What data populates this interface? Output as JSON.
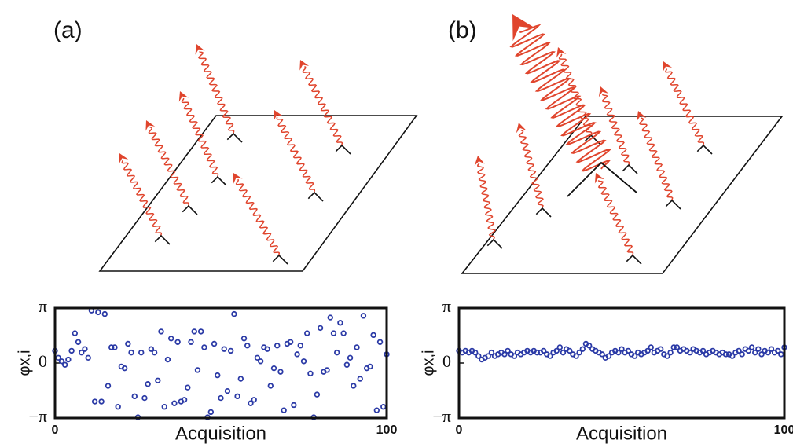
{
  "chart_data": [
    {
      "type": "scatter",
      "label": "(a)",
      "xlabel": "Acquisition",
      "ylabel": "φx,i",
      "color": "#2b3aa6",
      "x": [
        0,
        1,
        2,
        3,
        4,
        5,
        6,
        7,
        8,
        9,
        10,
        11,
        12,
        13,
        14,
        15,
        16,
        17,
        18,
        19,
        20,
        21,
        22,
        23,
        24,
        25,
        26,
        27,
        28,
        29,
        30,
        31,
        32,
        33,
        34,
        35,
        36,
        37,
        38,
        39,
        40,
        41,
        42,
        43,
        44,
        45,
        46,
        47,
        48,
        49,
        50,
        51,
        52,
        53,
        54,
        55,
        56,
        57,
        58,
        59,
        60,
        61,
        62,
        63,
        64,
        65,
        66,
        67,
        68,
        69,
        70,
        71,
        72,
        73,
        74,
        75,
        76,
        77,
        78,
        79,
        80,
        81,
        82,
        83,
        84,
        85,
        86,
        87,
        88,
        89,
        90,
        91,
        92,
        93,
        94,
        95,
        96,
        97,
        98,
        99,
        100
      ],
      "values": [
        0.7,
        0.3,
        0.1,
        -0.1,
        0.2,
        0.7,
        1.7,
        1.2,
        0.6,
        0.8,
        0.3,
        3.0,
        -2.2,
        2.9,
        -2.2,
        2.8,
        -1.3,
        0.9,
        0.9,
        -2.5,
        -0.2,
        -0.3,
        1.1,
        0.6,
        -1.9,
        -3.1,
        0.6,
        -2.0,
        -1.2,
        0.8,
        0.6,
        -1.0,
        1.8,
        -2.5,
        0.2,
        1.4,
        -2.3,
        1.2,
        -2.2,
        -2.1,
        -1.4,
        1.2,
        1.8,
        -0.4,
        1.8,
        0.9,
        -3.1,
        -2.8,
        1.1,
        -0.7,
        -2.0,
        0.8,
        -1.6,
        0.7,
        2.8,
        -1.9,
        -0.9,
        1.4,
        1.0,
        -2.3,
        -2.1,
        0.3,
        0.1,
        0.9,
        0.8,
        -1.3,
        -0.3,
        1.0,
        -0.5,
        -2.7,
        1.1,
        1.2,
        -2.4,
        0.5,
        1.0,
        0.1,
        1.7,
        -0.6,
        -3.1,
        -1.8,
        2.0,
        -0.5,
        -0.4,
        2.6,
        1.7,
        0.6,
        2.3,
        1.7,
        -0.1,
        0.3,
        -1.3,
        0.9,
        -0.9,
        2.7,
        -0.3,
        -0.2,
        1.6,
        -2.7,
        1.2,
        -2.5,
        0.5
      ],
      "xlim": [
        0,
        100
      ],
      "xticks": [
        0,
        100
      ],
      "ylim": [
        -3.14159,
        3.14159
      ],
      "yticks": [
        {
          "value": -3.14159,
          "label": "−π"
        },
        0,
        {
          "value": 3.14159,
          "label": "π"
        }
      ]
    },
    {
      "type": "scatter",
      "label": "(b)",
      "xlabel": "Acquisition",
      "ylabel": "φx,i",
      "color": "#2b3aa6",
      "x": [
        0,
        1,
        2,
        3,
        4,
        5,
        6,
        7,
        8,
        9,
        10,
        11,
        12,
        13,
        14,
        15,
        16,
        17,
        18,
        19,
        20,
        21,
        22,
        23,
        24,
        25,
        26,
        27,
        28,
        29,
        30,
        31,
        32,
        33,
        34,
        35,
        36,
        37,
        38,
        39,
        40,
        41,
        42,
        43,
        44,
        45,
        46,
        47,
        48,
        49,
        50,
        51,
        52,
        53,
        54,
        55,
        56,
        57,
        58,
        59,
        60,
        61,
        62,
        63,
        64,
        65,
        66,
        67,
        68,
        69,
        70,
        71,
        72,
        73,
        74,
        75,
        76,
        77,
        78,
        79,
        80,
        81,
        82,
        83,
        84,
        85,
        86,
        87,
        88,
        89,
        90,
        91,
        92,
        93,
        94,
        95,
        96,
        97,
        98,
        99,
        100
      ],
      "values": [
        0.7,
        0.6,
        0.7,
        0.6,
        0.7,
        0.6,
        0.4,
        0.2,
        0.3,
        0.4,
        0.6,
        0.4,
        0.5,
        0.6,
        0.5,
        0.7,
        0.5,
        0.4,
        0.6,
        0.5,
        0.6,
        0.7,
        0.6,
        0.7,
        0.6,
        0.6,
        0.7,
        0.5,
        0.4,
        0.6,
        0.7,
        0.9,
        0.6,
        0.8,
        0.7,
        0.5,
        0.4,
        0.6,
        0.8,
        1.1,
        1.0,
        0.8,
        0.7,
        0.6,
        0.5,
        0.3,
        0.4,
        0.6,
        0.7,
        0.6,
        0.8,
        0.6,
        0.7,
        0.5,
        0.4,
        0.6,
        0.5,
        0.6,
        0.7,
        0.9,
        0.6,
        0.7,
        0.8,
        0.5,
        0.4,
        0.6,
        0.9,
        0.9,
        0.7,
        0.8,
        0.7,
        0.6,
        0.8,
        0.7,
        0.6,
        0.7,
        0.5,
        0.6,
        0.7,
        0.6,
        0.5,
        0.6,
        0.5,
        0.5,
        0.4,
        0.6,
        0.7,
        0.5,
        0.8,
        0.7,
        0.9,
        0.6,
        0.8,
        0.5,
        0.7,
        0.6,
        0.8,
        0.6,
        0.7,
        0.5,
        0.9
      ],
      "xlim": [
        0,
        100
      ],
      "xticks": [
        0,
        100
      ],
      "ylim": [
        -3.14159,
        3.14159
      ],
      "yticks": [
        {
          "value": -3.14159,
          "label": "−π"
        },
        0,
        {
          "value": 3.14159,
          "label": "π"
        }
      ]
    }
  ]
}
